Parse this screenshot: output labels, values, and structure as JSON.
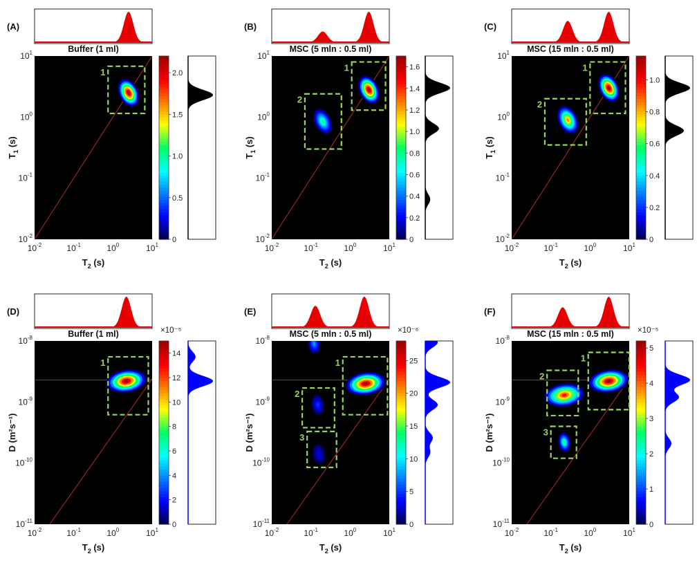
{
  "colors": {
    "plot_bg": "#000000",
    "diagonal": "#b22a2a",
    "box_outline": "#9bd35a",
    "top_projection": "#e60000",
    "right_projection_t1": "#000000",
    "right_projection_d": "#0000ff"
  },
  "chart_data": [
    {
      "type": "heatmap",
      "panel_label": "(A)",
      "title": "Buffer (1 ml)",
      "xlabel_main": "T",
      "xlabel_sub": "2",
      "xlabel_unit": " (s)",
      "ylabel_main": "T",
      "ylabel_sub": "1",
      "ylabel_unit": " (s)",
      "x_axis": {
        "scale": "log",
        "range": [
          0.01,
          10
        ],
        "ticks": [
          {
            "base": "10",
            "exp": "-2"
          },
          {
            "base": "10",
            "exp": "-1"
          },
          {
            "base": "10",
            "exp": "0"
          },
          {
            "base": "10",
            "exp": "1"
          }
        ]
      },
      "y_axis": {
        "scale": "log",
        "range": [
          0.01,
          10
        ],
        "ticks": [
          {
            "base": "10",
            "exp": "-2"
          },
          {
            "base": "10",
            "exp": "-1"
          },
          {
            "base": "10",
            "exp": "0"
          },
          {
            "base": "10",
            "exp": "1"
          }
        ]
      },
      "colorbar": {
        "range": [
          0,
          2.2
        ],
        "ticks": [
          "0",
          "0.5",
          "1.0",
          "1.5",
          "2.0"
        ],
        "tick_values": [
          0,
          0.5,
          1.0,
          1.5,
          2.0
        ],
        "multiplier": ""
      },
      "peaks": [
        {
          "x": 2.5,
          "y": 2.5,
          "intensity": 2.2
        }
      ],
      "boxes": [
        {
          "label": "1",
          "x_range": [
            0.75,
            6.5
          ],
          "y_range": [
            1.15,
            6.8
          ]
        }
      ],
      "top_projection": [
        {
          "x": 2.5,
          "height": 1.0
        }
      ],
      "right_projection": [
        {
          "y": 2.3,
          "height": 1.0
        }
      ]
    },
    {
      "type": "heatmap",
      "panel_label": "(B)",
      "title": "MSC (5 mln : 0.5 ml)",
      "xlabel_main": "T",
      "xlabel_sub": "2",
      "xlabel_unit": " (s)",
      "ylabel_main": "T",
      "ylabel_sub": "1",
      "ylabel_unit": " (s)",
      "x_axis": {
        "scale": "log",
        "range": [
          0.01,
          10
        ],
        "ticks": [
          {
            "base": "10",
            "exp": "-2"
          },
          {
            "base": "10",
            "exp": "-1"
          },
          {
            "base": "10",
            "exp": "0"
          },
          {
            "base": "10",
            "exp": "1"
          }
        ]
      },
      "y_axis": {
        "scale": "log",
        "range": [
          0.01,
          10
        ],
        "ticks": [
          {
            "base": "10",
            "exp": "-2"
          },
          {
            "base": "10",
            "exp": "-1"
          },
          {
            "base": "10",
            "exp": "0"
          },
          {
            "base": "10",
            "exp": "1"
          }
        ]
      },
      "colorbar": {
        "range": [
          0,
          1.7
        ],
        "ticks": [
          "0",
          "0.2",
          "0.4",
          "0.6",
          "0.8",
          "1.0",
          "1.2",
          "1.4",
          "1.6"
        ],
        "tick_values": [
          0,
          0.2,
          0.4,
          0.6,
          0.8,
          1.0,
          1.2,
          1.4,
          1.6
        ],
        "multiplier": ""
      },
      "peaks": [
        {
          "x": 3.0,
          "y": 2.8,
          "intensity": 1.7
        },
        {
          "x": 0.2,
          "y": 0.85,
          "intensity": 0.8
        }
      ],
      "boxes": [
        {
          "label": "1",
          "x_range": [
            1.1,
            8.0
          ],
          "y_range": [
            1.3,
            8.0
          ]
        },
        {
          "label": "2",
          "x_range": [
            0.07,
            0.6
          ],
          "y_range": [
            0.3,
            2.4
          ]
        }
      ],
      "top_projection": [
        {
          "x": 0.2,
          "height": 0.35
        },
        {
          "x": 3.0,
          "height": 1.0
        }
      ],
      "right_projection": [
        {
          "y": 3.0,
          "height": 1.0
        },
        {
          "y": 0.65,
          "height": 0.55
        },
        {
          "y": 0.045,
          "height": 0.2
        }
      ]
    },
    {
      "type": "heatmap",
      "panel_label": "(C)",
      "title": "MSC (15 mln : 0.5 ml)",
      "xlabel_main": "T",
      "xlabel_sub": "2",
      "xlabel_unit": " (s)",
      "ylabel_main": "T",
      "ylabel_sub": "1",
      "ylabel_unit": " (s)",
      "x_axis": {
        "scale": "log",
        "range": [
          0.01,
          10
        ],
        "ticks": [
          {
            "base": "10",
            "exp": "-2"
          },
          {
            "base": "10",
            "exp": "-1"
          },
          {
            "base": "10",
            "exp": "0"
          },
          {
            "base": "10",
            "exp": "1"
          }
        ]
      },
      "y_axis": {
        "scale": "log",
        "range": [
          0.01,
          10
        ],
        "ticks": [
          {
            "base": "10",
            "exp": "-2"
          },
          {
            "base": "10",
            "exp": "-1"
          },
          {
            "base": "10",
            "exp": "0"
          },
          {
            "base": "10",
            "exp": "1"
          }
        ]
      },
      "colorbar": {
        "range": [
          0,
          1.15
        ],
        "ticks": [
          "0",
          "0.2",
          "0.4",
          "0.6",
          "0.8",
          "1.0"
        ],
        "tick_values": [
          0,
          0.2,
          0.4,
          0.6,
          0.8,
          1.0
        ],
        "multiplier": ""
      },
      "peaks": [
        {
          "x": 3.0,
          "y": 3.0,
          "intensity": 1.15
        },
        {
          "x": 0.27,
          "y": 0.9,
          "intensity": 0.85
        }
      ],
      "boxes": [
        {
          "label": "1",
          "x_range": [
            1.0,
            8.0
          ],
          "y_range": [
            1.15,
            8.0
          ]
        },
        {
          "label": "2",
          "x_range": [
            0.07,
            0.8
          ],
          "y_range": [
            0.35,
            2.0
          ]
        }
      ],
      "top_projection": [
        {
          "x": 0.27,
          "height": 0.7
        },
        {
          "x": 3.0,
          "height": 1.0
        }
      ],
      "right_projection": [
        {
          "y": 3.0,
          "height": 1.0
        },
        {
          "y": 0.6,
          "height": 0.75
        }
      ]
    },
    {
      "type": "heatmap",
      "panel_label": "(D)",
      "title": "Buffer (1 ml)",
      "xlabel_main": "T",
      "xlabel_sub": "2",
      "xlabel_unit": " (s)",
      "ylabel_main": "D (m",
      "ylabel_sub": "",
      "ylabel_unit": "²s⁻¹)",
      "x_axis": {
        "scale": "log",
        "range": [
          0.01,
          10
        ],
        "ticks": [
          {
            "base": "10",
            "exp": "-2"
          },
          {
            "base": "10",
            "exp": "-1"
          },
          {
            "base": "10",
            "exp": "0"
          },
          {
            "base": "10",
            "exp": "1"
          }
        ]
      },
      "y_axis": {
        "scale": "log",
        "range": [
          1e-11,
          1e-08
        ],
        "ticks": [
          {
            "base": "10",
            "exp": "-11"
          },
          {
            "base": "10",
            "exp": "-10"
          },
          {
            "base": "10",
            "exp": "-9"
          },
          {
            "base": "10",
            "exp": "-8"
          }
        ]
      },
      "colorbar": {
        "range": [
          0,
          15
        ],
        "ticks": [
          "0",
          "2",
          "4",
          "6",
          "8",
          "10",
          "12",
          "14"
        ],
        "tick_values": [
          0,
          2,
          4,
          6,
          8,
          10,
          12,
          14
        ],
        "multiplier": "×10⁻⁵"
      },
      "peaks": [
        {
          "x": 2.2,
          "y": 2.2e-09,
          "intensity": 15
        }
      ],
      "horizontal_line_y": 2.3e-09,
      "boxes": [
        {
          "label": "1",
          "x_range": [
            0.75,
            8.0
          ],
          "y_range": [
            6.2e-10,
            5.5e-09
          ]
        }
      ],
      "top_projection": [
        {
          "x": 2.2,
          "height": 1.0
        }
      ],
      "right_projection": [
        {
          "y": 2.2e-09,
          "height": 1.0
        },
        {
          "y": 5.5e-09,
          "height": 0.3
        }
      ]
    },
    {
      "type": "heatmap",
      "panel_label": "(E)",
      "title": "MSC (5 mln : 0.5 ml)",
      "xlabel_main": "T",
      "xlabel_sub": "2",
      "xlabel_unit": " (s)",
      "ylabel_main": "D (m",
      "ylabel_sub": "",
      "ylabel_unit": "²s⁻¹)",
      "x_axis": {
        "scale": "log",
        "range": [
          0.01,
          10
        ],
        "ticks": [
          {
            "base": "10",
            "exp": "-2"
          },
          {
            "base": "10",
            "exp": "-1"
          },
          {
            "base": "10",
            "exp": "0"
          },
          {
            "base": "10",
            "exp": "1"
          }
        ]
      },
      "y_axis": {
        "scale": "log",
        "range": [
          1e-11,
          1e-08
        ],
        "ticks": [
          {
            "base": "10",
            "exp": "-11"
          },
          {
            "base": "10",
            "exp": "-10"
          },
          {
            "base": "10",
            "exp": "-9"
          },
          {
            "base": "10",
            "exp": "-8"
          }
        ]
      },
      "colorbar": {
        "range": [
          0,
          28
        ],
        "ticks": [
          "0",
          "5",
          "10",
          "15",
          "20",
          "25"
        ],
        "tick_values": [
          0,
          5,
          10,
          15,
          20,
          25
        ],
        "multiplier": "×10⁻⁶"
      },
      "peaks": [
        {
          "x": 2.5,
          "y": 2e-09,
          "intensity": 28
        },
        {
          "x": 0.15,
          "y": 9e-10,
          "intensity": 5
        },
        {
          "x": 0.16,
          "y": 1.4e-10,
          "intensity": 3
        },
        {
          "x": 0.12,
          "y": 9e-09,
          "intensity": 8
        }
      ],
      "horizontal_line_y": 2.3e-09,
      "boxes": [
        {
          "label": "1",
          "x_range": [
            0.65,
            9.0
          ],
          "y_range": [
            6.2e-10,
            5.5e-09
          ]
        },
        {
          "label": "2",
          "x_range": [
            0.06,
            0.4
          ],
          "y_range": [
            3.8e-10,
            1.7e-09
          ]
        },
        {
          "label": "3",
          "x_range": [
            0.08,
            0.45
          ],
          "y_range": [
            8.5e-11,
            3.3e-10
          ]
        }
      ],
      "top_projection": [
        {
          "x": 0.13,
          "height": 0.7
        },
        {
          "x": 2.3,
          "height": 1.0
        }
      ],
      "right_projection": [
        {
          "y": 2.1e-09,
          "height": 1.0
        },
        {
          "y": 9e-10,
          "height": 0.5
        },
        {
          "y": 2.6e-10,
          "height": 0.3
        },
        {
          "y": 1.5e-10,
          "height": 0.2
        },
        {
          "y": 9.5e-09,
          "height": 0.5
        }
      ]
    },
    {
      "type": "heatmap",
      "panel_label": "(F)",
      "title": "MSC (15 mln : 0.5 ml)",
      "xlabel_main": "T",
      "xlabel_sub": "2",
      "xlabel_unit": " (s)",
      "ylabel_main": "D (m",
      "ylabel_sub": "",
      "ylabel_unit": "²s⁻¹)",
      "x_axis": {
        "scale": "log",
        "range": [
          0.01,
          10
        ],
        "ticks": [
          {
            "base": "10",
            "exp": "-2"
          },
          {
            "base": "10",
            "exp": "-1"
          },
          {
            "base": "10",
            "exp": "0"
          },
          {
            "base": "10",
            "exp": "1"
          }
        ]
      },
      "y_axis": {
        "scale": "log",
        "range": [
          1e-11,
          1e-08
        ],
        "ticks": [
          {
            "base": "10",
            "exp": "-11"
          },
          {
            "base": "10",
            "exp": "-10"
          },
          {
            "base": "10",
            "exp": "-9"
          },
          {
            "base": "10",
            "exp": "-8"
          }
        ]
      },
      "colorbar": {
        "range": [
          0,
          5.2
        ],
        "ticks": [
          "0",
          "1",
          "2",
          "3",
          "4",
          "5"
        ],
        "tick_values": [
          0,
          1,
          2,
          3,
          4,
          5
        ],
        "multiplier": "×10⁻⁵"
      },
      "peaks": [
        {
          "x": 3.0,
          "y": 2.2e-09,
          "intensity": 5.2
        },
        {
          "x": 0.22,
          "y": 1.3e-09,
          "intensity": 4.5
        },
        {
          "x": 0.22,
          "y": 2.2e-10,
          "intensity": 2.5
        }
      ],
      "horizontal_line_y": 2.3e-09,
      "boxes": [
        {
          "label": "1",
          "x_range": [
            0.9,
            10.0
          ],
          "y_range": [
            7.5e-10,
            6.5e-09
          ]
        },
        {
          "label": "2",
          "x_range": [
            0.08,
            0.5
          ],
          "y_range": [
            6e-10,
            3.3e-09
          ]
        },
        {
          "label": "3",
          "x_range": [
            0.1,
            0.45
          ],
          "y_range": [
            1.2e-10,
            4e-10
          ]
        }
      ],
      "top_projection": [
        {
          "x": 0.2,
          "height": 0.65
        },
        {
          "x": 3.0,
          "height": 1.0
        }
      ],
      "right_projection": [
        {
          "y": 2.3e-09,
          "height": 1.0
        },
        {
          "y": 1.2e-09,
          "height": 0.55
        },
        {
          "y": 2.1e-10,
          "height": 0.25
        }
      ]
    }
  ]
}
